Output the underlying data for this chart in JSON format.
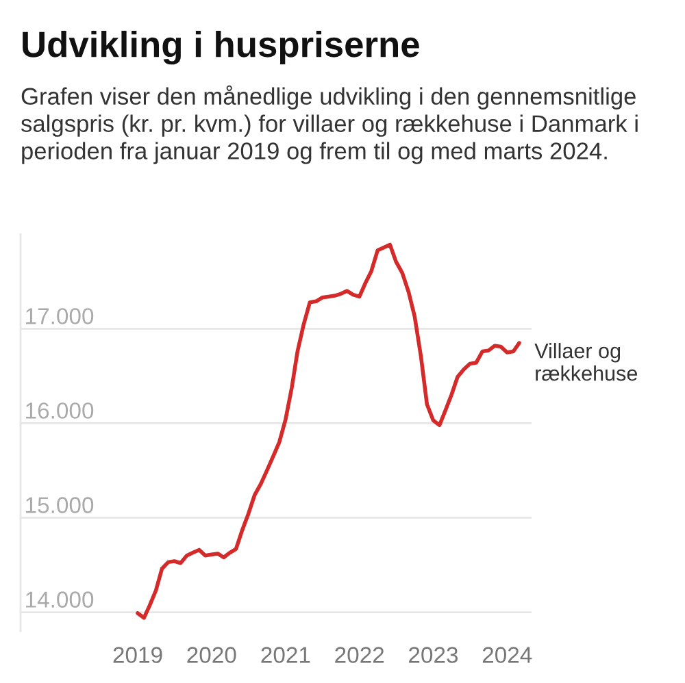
{
  "chart_data": {
    "type": "line",
    "title": "Udvikling i huspriserne",
    "subtitle": "Grafen viser den månedlige udvikling i den gennemsnitlige salgspris (kr. pr. kvm.) for villaer og rækkehuse i Danmark i perioden fra januar 2019 og frem til og med marts 2024.",
    "x": [
      "2019-01",
      "2019-02",
      "2019-03",
      "2019-04",
      "2019-05",
      "2019-06",
      "2019-07",
      "2019-08",
      "2019-09",
      "2019-10",
      "2019-11",
      "2019-12",
      "2020-01",
      "2020-02",
      "2020-03",
      "2020-04",
      "2020-05",
      "2020-06",
      "2020-07",
      "2020-08",
      "2020-09",
      "2020-10",
      "2020-11",
      "2020-12",
      "2021-01",
      "2021-02",
      "2021-03",
      "2021-04",
      "2021-05",
      "2021-06",
      "2021-07",
      "2021-08",
      "2021-09",
      "2021-10",
      "2021-11",
      "2021-12",
      "2022-01",
      "2022-02",
      "2022-03",
      "2022-04",
      "2022-05",
      "2022-06",
      "2022-07",
      "2022-08",
      "2022-09",
      "2022-10",
      "2022-11",
      "2022-12",
      "2023-01",
      "2023-02",
      "2023-03",
      "2023-04",
      "2023-05",
      "2023-06",
      "2023-07",
      "2023-08",
      "2023-09",
      "2023-10",
      "2023-11",
      "2023-12",
      "2024-01",
      "2024-02",
      "2024-03"
    ],
    "series": [
      {
        "name": "Villaer og\nrækkehuse",
        "color": "#d42a2a",
        "values": [
          13990,
          13940,
          14070,
          14230,
          14460,
          14530,
          14540,
          14520,
          14600,
          14630,
          14660,
          14600,
          14610,
          14620,
          14580,
          14630,
          14670,
          14870,
          15040,
          15240,
          15360,
          15500,
          15650,
          15800,
          16040,
          16380,
          16760,
          17050,
          17280,
          17290,
          17330,
          17340,
          17350,
          17370,
          17400,
          17360,
          17340,
          17490,
          17610,
          17830,
          17860,
          17890,
          17710,
          17590,
          17390,
          17130,
          16710,
          16200,
          16030,
          15980,
          16130,
          16300,
          16490,
          16570,
          16630,
          16640,
          16760,
          16770,
          16820,
          16810,
          16750,
          16760,
          16850
        ]
      }
    ],
    "xlim": [
      "2017-06",
      "2024-05"
    ],
    "xticks": [
      {
        "value": "2019",
        "label": "2019"
      },
      {
        "value": "2020",
        "label": "2020"
      },
      {
        "value": "2021",
        "label": "2021"
      },
      {
        "value": "2022",
        "label": "2022"
      },
      {
        "value": "2023",
        "label": "2023"
      },
      {
        "value": "2024",
        "label": "2024"
      }
    ],
    "ylim": [
      13800,
      18000
    ],
    "yticks": [
      {
        "value": 14000,
        "label": "14.000"
      },
      {
        "value": 15000,
        "label": "15.000"
      },
      {
        "value": 16000,
        "label": "16.000"
      },
      {
        "value": 17000,
        "label": "17.000"
      }
    ],
    "grid": "y",
    "marker": "none",
    "line_style": "solid"
  }
}
